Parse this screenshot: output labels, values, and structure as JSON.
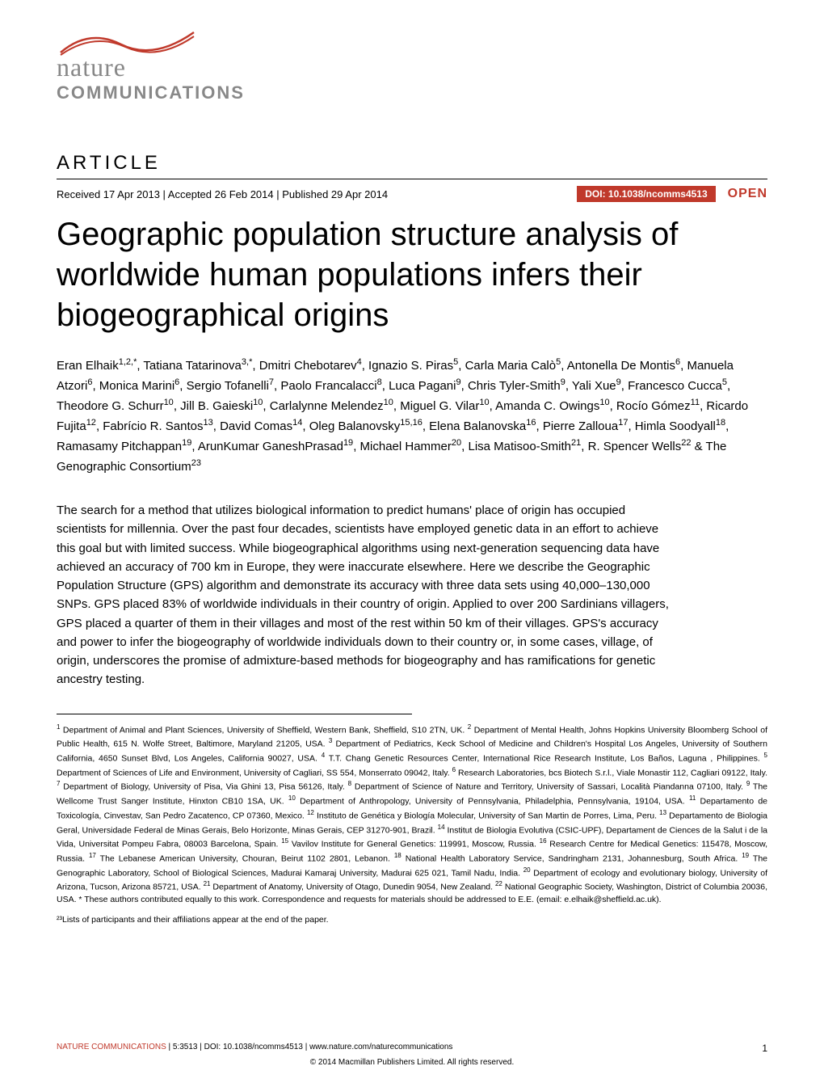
{
  "logo": {
    "nature": "nature",
    "communications": "COMMUNICATIONS",
    "swoosh_color": "#c0392b"
  },
  "header": {
    "article_type": "ARTICLE",
    "dates": "Received 17 Apr 2013 | Accepted 26 Feb 2014 | Published 29 Apr 2014",
    "doi": "DOI: 10.1038/ncomms4513",
    "open_access": "OPEN"
  },
  "title": "Geographic population structure analysis of worldwide human populations infers their biogeographical origins",
  "authors_html": "Eran Elhaik<sup>1,2,*</sup>, Tatiana Tatarinova<sup>3,*</sup>, Dmitri Chebotarev<sup>4</sup>, Ignazio S. Piras<sup>5</sup>, Carla Maria Calò<sup>5</sup>, Antonella De Montis<sup>6</sup>, Manuela Atzori<sup>6</sup>, Monica Marini<sup>6</sup>, Sergio Tofanelli<sup>7</sup>, Paolo Francalacci<sup>8</sup>, Luca Pagani<sup>9</sup>, Chris Tyler-Smith<sup>9</sup>, Yali Xue<sup>9</sup>, Francesco Cucca<sup>5</sup>, Theodore G. Schurr<sup>10</sup>, Jill B. Gaieski<sup>10</sup>, Carlalynne Melendez<sup>10</sup>, Miguel G. Vilar<sup>10</sup>, Amanda C. Owings<sup>10</sup>, Rocío Gómez<sup>11</sup>, Ricardo Fujita<sup>12</sup>, Fabrício R. Santos<sup>13</sup>, David Comas<sup>14</sup>, Oleg Balanovsky<sup>15,16</sup>, Elena Balanovska<sup>16</sup>, Pierre Zalloua<sup>17</sup>, Himla Soodyall<sup>18</sup>, Ramasamy Pitchappan<sup>19</sup>, ArunKumar GaneshPrasad<sup>19</sup>, Michael Hammer<sup>20</sup>, Lisa Matisoo-Smith<sup>21</sup>, R. Spencer Wells<sup>22</sup> & The Genographic Consortium<sup>23</sup>",
  "abstract": "The search for a method that utilizes biological information to predict humans' place of origin has occupied scientists for millennia. Over the past four decades, scientists have employed genetic data in an effort to achieve this goal but with limited success. While biogeographical algorithms using next-generation sequencing data have achieved an accuracy of 700 km in Europe, they were inaccurate elsewhere. Here we describe the Geographic Population Structure (GPS) algorithm and demonstrate its accuracy with three data sets using 40,000–130,000 SNPs. GPS placed 83% of worldwide individuals in their country of origin. Applied to over 200 Sardinians villagers, GPS placed a quarter of them in their villages and most of the rest within 50 km of their villages. GPS's accuracy and power to infer the biogeography of worldwide individuals down to their country or, in some cases, village, of origin, underscores the promise of admixture-based methods for biogeography and has ramifications for genetic ancestry testing.",
  "affiliations_html": "<sup>1</sup> Department of Animal and Plant Sciences, University of Sheffield, Western Bank, Sheffield, S10 2TN, UK. <sup>2</sup> Department of Mental Health, Johns Hopkins University Bloomberg School of Public Health, 615 N. Wolfe Street, Baltimore, Maryland 21205, USA. <sup>3</sup> Department of Pediatrics, Keck School of Medicine and Children's Hospital Los Angeles, University of Southern California, 4650 Sunset Blvd, Los Angeles, California 90027, USA. <sup>4</sup> T.T. Chang Genetic Resources Center, International Rice Research Institute, Los Baños, Laguna , Philippines. <sup>5</sup> Department of Sciences of Life and Environment, University of Cagliari, SS 554, Monserrato 09042, Italy. <sup>6</sup> Research Laboratories, bcs Biotech S.r.l., Viale Monastir 112, Cagliari 09122, Italy. <sup>7</sup> Department of Biology, University of Pisa, Via Ghini 13, Pisa 56126, Italy. <sup>8</sup> Department of Science of Nature and Territory, University of Sassari, Località Piandanna 07100, Italy. <sup>9</sup> The Wellcome Trust Sanger Institute, Hinxton CB10 1SA, UK. <sup>10</sup> Department of Anthropology, University of Pennsylvania, Philadelphia, Pennsylvania, 19104, USA. <sup>11</sup> Departamento de Toxicología, Cinvestav, San Pedro Zacatenco, CP 07360, Mexico. <sup>12</sup> Instituto de Genética y Biología Molecular, University of San Martin de Porres, Lima, Peru. <sup>13</sup> Departamento de Biologia Geral, Universidade Federal de Minas Gerais, Belo Horizonte, Minas Gerais, CEP 31270-901, Brazil. <sup>14</sup> Institut de Biologia Evolutiva (CSIC-UPF), Departament de Ciences de la Salut i de la Vida, Universitat Pompeu Fabra, 08003 Barcelona, Spain. <sup>15</sup> Vavilov Institute for General Genetics: 119991, Moscow, Russia. <sup>16</sup> Research Centre for Medical Genetics: 115478, Moscow, Russia. <sup>17</sup> The Lebanese American University, Chouran, Beirut 1102 2801, Lebanon. <sup>18</sup> National Health Laboratory Service, Sandringham 2131, Johannesburg, South Africa. <sup>19</sup> The Genographic Laboratory, School of Biological Sciences, Madurai Kamaraj University, Madurai 625 021, Tamil Nadu, India. <sup>20</sup> Department of ecology and evolutionary biology, University of Arizona, Tucson, Arizona 85721, USA. <sup>21</sup> Department of Anatomy, University of Otago, Dunedin 9054, New Zealand. <sup>22</sup> National Geographic Society, Washington, District of Columbia 20036, USA. * These authors contributed equally to this work. Correspondence and requests for materials should be addressed to E.E. (email: e.elhaik@sheffield.ac.uk).",
  "participants_note": "²³Lists of participants and their affiliations appear at the end of the paper.",
  "footer": {
    "citation_red": "NATURE COMMUNICATIONS",
    "citation_black": " | 5:3513 | DOI: 10.1038/ncomms4513 | www.nature.com/naturecommunications",
    "page_number": "1",
    "copyright": "© 2014 Macmillan Publishers Limited. All rights reserved."
  },
  "colors": {
    "accent_red": "#c0392b",
    "grey_logo": "#888888",
    "text_black": "#000000",
    "background": "#ffffff"
  },
  "typography": {
    "title_fontsize": 40,
    "title_weight": 300,
    "body_fontsize": 15,
    "affil_fontsize": 10.5,
    "footer_fontsize": 10
  }
}
